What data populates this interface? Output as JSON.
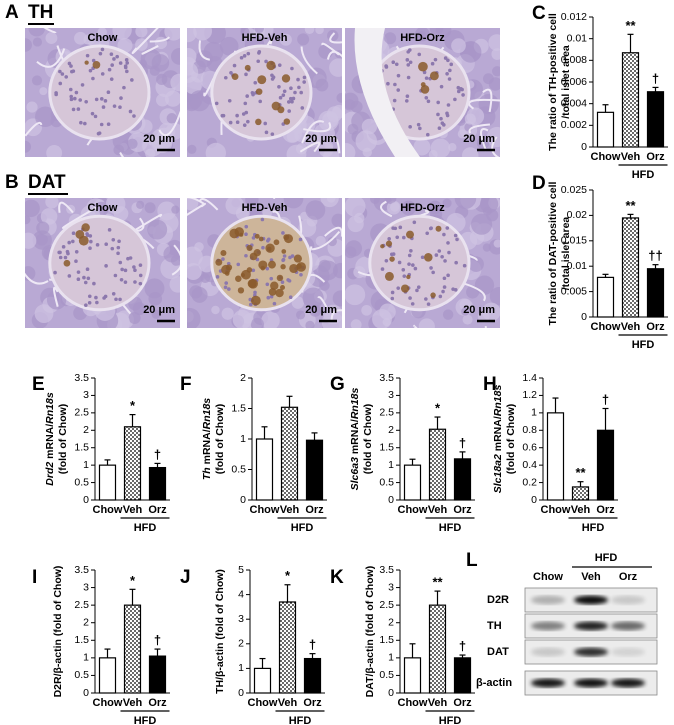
{
  "figure_panels": [
    {
      "letter": "A",
      "stain": "TH",
      "images": [
        "Chow",
        "HFD-Veh",
        "HFD-Orz"
      ],
      "scale_bar": "20 μm"
    },
    {
      "letter": "B",
      "stain": "DAT",
      "images": [
        "Chow",
        "HFD-Veh",
        "HFD-Orz"
      ],
      "scale_bar": "20 μm"
    }
  ],
  "chart_data": [
    {
      "type": "bar",
      "letter": "C",
      "ylabel": [
        [
          {
            "text": "The ratio of TH-positive cell"
          }
        ],
        [
          {
            "text": "/total islet area"
          }
        ]
      ],
      "categories": [
        "Chow",
        "Veh",
        "Orz"
      ],
      "group_label": "HFD",
      "values": [
        0.0032,
        0.0087,
        0.0051
      ],
      "errors": [
        0.0007,
        0.0017,
        0.0004
      ],
      "significance": [
        null,
        "**",
        "†"
      ],
      "fills": [
        "open",
        "dotted",
        "solid"
      ],
      "ylim": [
        0,
        0.012
      ],
      "yticks": [
        0,
        0.002,
        0.004,
        0.006,
        0.008,
        0.01,
        0.012
      ]
    },
    {
      "type": "bar",
      "letter": "D",
      "ylabel": [
        [
          {
            "text": "The ratio of DAT-positive cell"
          }
        ],
        [
          {
            "text": "/total islet area"
          }
        ]
      ],
      "categories": [
        "Chow",
        "Veh",
        "Orz"
      ],
      "group_label": "HFD",
      "values": [
        0.0078,
        0.0195,
        0.0095
      ],
      "errors": [
        0.0006,
        0.0007,
        0.0008
      ],
      "significance": [
        null,
        "**",
        "††"
      ],
      "fills": [
        "open",
        "dotted",
        "solid"
      ],
      "ylim": [
        0,
        0.025
      ],
      "yticks": [
        0,
        0.005,
        0.01,
        0.015,
        0.02,
        0.025
      ]
    },
    {
      "type": "bar",
      "letter": "E",
      "ylabel": [
        [
          {
            "text": "Drd2",
            "italic": true
          },
          {
            "text": " mRNA/"
          },
          {
            "text": "Rn18s",
            "italic": true
          }
        ],
        [
          {
            "text": "(fold of Chow)"
          }
        ]
      ],
      "categories": [
        "Chow",
        "Veh",
        "Orz"
      ],
      "group_label": "HFD",
      "values": [
        1.0,
        2.1,
        0.93
      ],
      "errors": [
        0.15,
        0.35,
        0.12
      ],
      "significance": [
        null,
        "*",
        "†"
      ],
      "fills": [
        "open",
        "dotted",
        "solid"
      ],
      "ylim": [
        0,
        3.5
      ],
      "yticks": [
        0,
        0.5,
        1,
        1.5,
        2,
        2.5,
        3,
        3.5
      ]
    },
    {
      "type": "bar",
      "letter": "F",
      "ylabel": [
        [
          {
            "text": "Th",
            "italic": true
          },
          {
            "text": " mRNA/"
          },
          {
            "text": "Rn18s",
            "italic": true
          }
        ],
        [
          {
            "text": "(fold of Chow)"
          }
        ]
      ],
      "categories": [
        "Chow",
        "Veh",
        "Orz"
      ],
      "group_label": "HFD",
      "values": [
        1.0,
        1.52,
        0.98
      ],
      "errors": [
        0.2,
        0.18,
        0.12
      ],
      "significance": [
        null,
        null,
        null
      ],
      "fills": [
        "open",
        "dotted",
        "solid"
      ],
      "ylim": [
        0,
        2
      ],
      "yticks": [
        0,
        0.5,
        1,
        1.5,
        2
      ]
    },
    {
      "type": "bar",
      "letter": "G",
      "ylabel": [
        [
          {
            "text": "Slc6a3",
            "italic": true
          },
          {
            "text": " mRNA/"
          },
          {
            "text": "Rn18s",
            "italic": true
          }
        ],
        [
          {
            "text": "(fold of Chow)"
          }
        ]
      ],
      "categories": [
        "Chow",
        "Veh",
        "Orz"
      ],
      "group_label": "HFD",
      "values": [
        1.0,
        2.03,
        1.18
      ],
      "errors": [
        0.17,
        0.35,
        0.2
      ],
      "significance": [
        null,
        "*",
        "†"
      ],
      "fills": [
        "open",
        "dotted",
        "solid"
      ],
      "ylim": [
        0,
        3.5
      ],
      "yticks": [
        0,
        0.5,
        1,
        1.5,
        2,
        2.5,
        3,
        3.5
      ]
    },
    {
      "type": "bar",
      "letter": "H",
      "ylabel": [
        [
          {
            "text": "Slc18a2",
            "italic": true
          },
          {
            "text": " mRNA/"
          },
          {
            "text": "Rn18s",
            "italic": true
          }
        ],
        [
          {
            "text": "(fold of Chow)"
          }
        ]
      ],
      "categories": [
        "Chow",
        "Veh",
        "Orz"
      ],
      "group_label": "HFD",
      "values": [
        1.0,
        0.15,
        0.8
      ],
      "errors": [
        0.17,
        0.06,
        0.25
      ],
      "significance": [
        null,
        "**",
        "†"
      ],
      "fills": [
        "open",
        "dotted",
        "solid"
      ],
      "ylim": [
        0,
        1.4
      ],
      "yticks": [
        0,
        0.2,
        0.4,
        0.6,
        0.8,
        1,
        1.2,
        1.4
      ]
    },
    {
      "type": "bar",
      "letter": "I",
      "ylabel": [
        [
          {
            "text": "D2R/β-actin (fold of Chow)"
          }
        ]
      ],
      "categories": [
        "Chow",
        "Veh",
        "Orz"
      ],
      "group_label": "HFD",
      "values": [
        1.0,
        2.5,
        1.05
      ],
      "errors": [
        0.25,
        0.45,
        0.2
      ],
      "significance": [
        null,
        "*",
        "†"
      ],
      "fills": [
        "open",
        "dotted",
        "solid"
      ],
      "ylim": [
        0,
        3.5
      ],
      "yticks": [
        0,
        0.5,
        1,
        1.5,
        2,
        2.5,
        3,
        3.5
      ]
    },
    {
      "type": "bar",
      "letter": "J",
      "ylabel": [
        [
          {
            "text": "TH/β-actin (fold of Chow)"
          }
        ]
      ],
      "categories": [
        "Chow",
        "Veh",
        "Orz"
      ],
      "group_label": "HFD",
      "values": [
        1.0,
        3.7,
        1.4
      ],
      "errors": [
        0.4,
        0.7,
        0.2
      ],
      "significance": [
        null,
        "*",
        "†"
      ],
      "fills": [
        "open",
        "dotted",
        "solid"
      ],
      "ylim": [
        0,
        5
      ],
      "yticks": [
        0,
        1,
        2,
        3,
        4,
        5
      ]
    },
    {
      "type": "bar",
      "letter": "K",
      "ylabel": [
        [
          {
            "text": "DAT/β-actin (fold of Chow)"
          }
        ]
      ],
      "categories": [
        "Chow",
        "Veh",
        "Orz"
      ],
      "group_label": "HFD",
      "values": [
        1.0,
        2.5,
        1.0
      ],
      "errors": [
        0.4,
        0.4,
        0.08
      ],
      "significance": [
        null,
        "**",
        "†"
      ],
      "fills": [
        "open",
        "dotted",
        "solid"
      ],
      "ylim": [
        0,
        3.5
      ],
      "yticks": [
        0,
        0.5,
        1,
        1.5,
        2,
        2.5,
        3,
        3.5
      ]
    }
  ],
  "blot": {
    "letter": "L",
    "group": "HFD",
    "lanes": [
      "Chow",
      "Veh",
      "Orz"
    ],
    "proteins": [
      "D2R",
      "TH",
      "DAT",
      "β-actin"
    ]
  }
}
